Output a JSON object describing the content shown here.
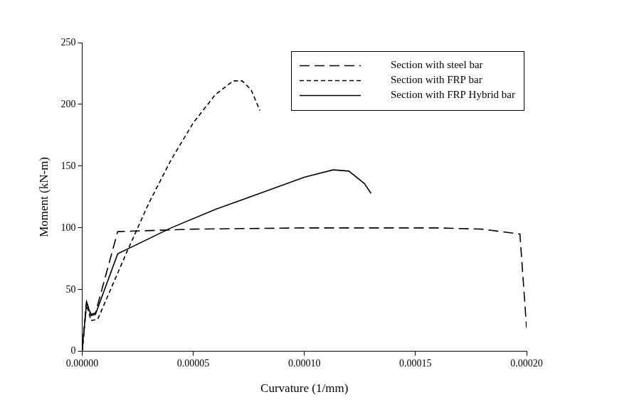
{
  "chart_data": {
    "type": "line",
    "x_label": "Curvature (1/mm)",
    "y_label": "Moment (kN-m)",
    "xlim": [
      0,
      0.0002
    ],
    "xticks": [
      {
        "value": 0,
        "label": "0.00000"
      },
      {
        "value": 5e-05,
        "label": "0.00005"
      },
      {
        "value": 0.0001,
        "label": "0.00010"
      },
      {
        "value": 0.00015,
        "label": "0.00015"
      },
      {
        "value": 0.0002,
        "label": "0.00020"
      }
    ],
    "ylim": [
      0,
      250
    ],
    "yticks": [
      0,
      50,
      100,
      150,
      200,
      250
    ],
    "grid": false,
    "legend": "upper right",
    "series": [
      {
        "name": "Section with steel bar",
        "color": "#000000",
        "line_style": "long_dash",
        "x": [
          0,
          2e-06,
          4e-06,
          6e-06,
          1.6e-05,
          5e-05,
          0.0001,
          0.00016,
          0.00018,
          0.000197,
          0.0002
        ],
        "values": [
          0,
          40,
          30,
          31,
          97,
          99,
          100,
          100,
          99,
          95,
          19
        ]
      },
      {
        "name": "Section with FRP bar",
        "color": "#000000",
        "line_style": "short_dash",
        "x": [
          0,
          2e-06,
          4e-06,
          7e-06,
          2e-05,
          3e-05,
          4e-05,
          5e-05,
          6e-05,
          6.8e-05,
          7.2e-05,
          7.6e-05,
          8e-05
        ],
        "values": [
          0,
          38,
          25,
          26,
          80,
          120,
          155,
          185,
          208,
          219,
          219,
          212,
          195
        ]
      },
      {
        "name": "Section with FRP Hybrid bar",
        "color": "#000000",
        "line_style": "solid",
        "x": [
          0,
          2e-06,
          4e-06,
          6e-06,
          1.6e-05,
          4e-05,
          6e-05,
          8e-05,
          0.0001,
          0.000113,
          0.00012,
          0.000127,
          0.00013
        ],
        "values": [
          0,
          40,
          29,
          30,
          79,
          100,
          115,
          128,
          141,
          147,
          146,
          136,
          128
        ]
      }
    ]
  }
}
